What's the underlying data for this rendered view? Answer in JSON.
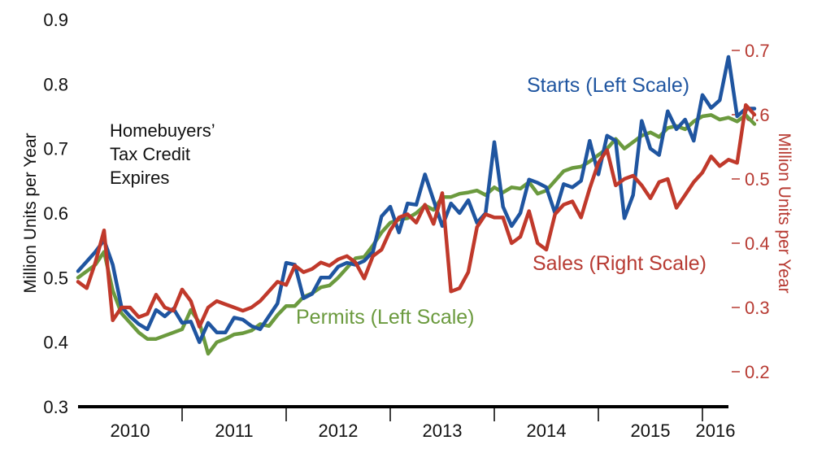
{
  "chart_data": {
    "type": "line",
    "ylabel": "Million Units per Year",
    "y2label": "Million Units per Year",
    "ylim": [
      0.3,
      0.9
    ],
    "y2lim": [
      0.2,
      0.7
    ],
    "yticks": [
      "0.3",
      "0.4",
      "0.5",
      "0.6",
      "0.7",
      "0.8",
      "0.9"
    ],
    "y2ticks": [
      "0.2",
      "0.3",
      "0.4",
      "0.5",
      "0.6",
      "0.7"
    ],
    "x_start": "2010-01",
    "x_end": "2016-04",
    "xtick_labels": [
      "2010",
      "2011",
      "2012",
      "2013",
      "2014",
      "2015",
      "2016"
    ],
    "annotation": [
      "Homebuyers’",
      "Tax Credit",
      "Expires"
    ],
    "series": [
      {
        "name": "Starts (Left Scale)",
        "axis": "left",
        "color": "#1f55a0",
        "values": [
          0.51,
          0.525,
          0.54,
          0.558,
          0.52,
          0.455,
          0.44,
          0.428,
          0.42,
          0.45,
          0.44,
          0.452,
          0.43,
          0.432,
          0.4,
          0.43,
          0.415,
          0.415,
          0.438,
          0.435,
          0.425,
          0.42,
          0.44,
          0.46,
          0.523,
          0.52,
          0.468,
          0.475,
          0.5,
          0.5,
          0.517,
          0.523,
          0.52,
          0.526,
          0.54,
          0.595,
          0.61,
          0.57,
          0.615,
          0.613,
          0.66,
          0.62,
          0.58,
          0.615,
          0.6,
          0.62,
          0.585,
          0.6,
          0.71,
          0.61,
          0.58,
          0.6,
          0.652,
          0.647,
          0.64,
          0.6,
          0.645,
          0.64,
          0.65,
          0.712,
          0.66,
          0.72,
          0.712,
          0.592,
          0.628,
          0.743,
          0.7,
          0.69,
          0.758,
          0.73,
          0.745,
          0.712,
          0.783,
          0.763,
          0.775,
          0.842,
          0.75,
          0.762,
          0.762
        ]
      },
      {
        "name": "Permits (Left Scale)",
        "axis": "left",
        "color": "#6b9a3e",
        "values": [
          0.5,
          0.51,
          0.52,
          0.54,
          0.48,
          0.445,
          0.43,
          0.415,
          0.405,
          0.405,
          0.41,
          0.415,
          0.42,
          0.45,
          0.43,
          0.382,
          0.4,
          0.405,
          0.412,
          0.414,
          0.418,
          0.428,
          0.425,
          0.442,
          0.456,
          0.456,
          0.47,
          0.476,
          0.485,
          0.488,
          0.5,
          0.515,
          0.53,
          0.532,
          0.55,
          0.57,
          0.585,
          0.59,
          0.592,
          0.6,
          0.612,
          0.605,
          0.625,
          0.625,
          0.63,
          0.632,
          0.635,
          0.628,
          0.64,
          0.632,
          0.64,
          0.638,
          0.648,
          0.63,
          0.635,
          0.65,
          0.665,
          0.67,
          0.672,
          0.68,
          0.69,
          0.7,
          0.715,
          0.7,
          0.71,
          0.72,
          0.725,
          0.718,
          0.732,
          0.735,
          0.73,
          0.742,
          0.75,
          0.752,
          0.745,
          0.748,
          0.742,
          0.752,
          0.738
        ]
      },
      {
        "name": "Sales (Right Scale)",
        "axis": "right",
        "color": "#c0392b",
        "values": [
          0.34,
          0.33,
          0.37,
          0.42,
          0.28,
          0.3,
          0.3,
          0.285,
          0.29,
          0.32,
          0.3,
          0.295,
          0.328,
          0.31,
          0.27,
          0.3,
          0.31,
          0.305,
          0.3,
          0.295,
          0.3,
          0.31,
          0.325,
          0.34,
          0.335,
          0.365,
          0.355,
          0.36,
          0.37,
          0.365,
          0.375,
          0.38,
          0.37,
          0.345,
          0.38,
          0.39,
          0.42,
          0.44,
          0.445,
          0.432,
          0.46,
          0.43,
          0.478,
          0.325,
          0.33,
          0.355,
          0.425,
          0.445,
          0.44,
          0.44,
          0.4,
          0.41,
          0.45,
          0.4,
          0.39,
          0.445,
          0.46,
          0.465,
          0.44,
          0.485,
          0.525,
          0.545,
          0.49,
          0.5,
          0.505,
          0.49,
          0.47,
          0.495,
          0.5,
          0.455,
          0.475,
          0.495,
          0.51,
          0.535,
          0.52,
          0.53,
          0.525,
          0.615,
          0.6
        ]
      }
    ],
    "series_labels": [
      "Starts (Left Scale)",
      "Permits (Left Scale)",
      "Sales (Right Scale)"
    ]
  }
}
